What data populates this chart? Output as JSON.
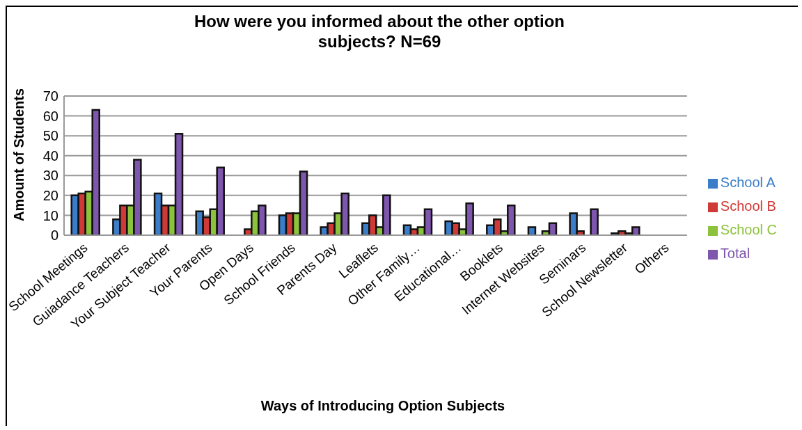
{
  "chart_data": {
    "type": "bar",
    "title": "How were you informed about the other option subjects? N=69",
    "xlabel": "Ways of Introducing Option Subjects",
    "ylabel": "Amount of Students",
    "categories": [
      "School Meetings",
      "Guiadance Teachers",
      "Your Subject Teacher",
      "Your Parents",
      "Open Days",
      "School Friends",
      "Parents Day",
      "Leaflets",
      "Other Family…",
      "Educational…",
      "Booklets",
      "Internet Websites",
      "Seminars",
      "School Newsletter",
      "Others"
    ],
    "series": [
      {
        "name": "School A",
        "color": "#3b7dc8",
        "values": [
          20,
          8,
          21,
          12,
          0,
          10,
          4,
          6,
          5,
          7,
          5,
          4,
          11,
          1,
          0
        ]
      },
      {
        "name": "School B",
        "color": "#d03a36",
        "values": [
          21,
          15,
          15,
          9,
          3,
          11,
          6,
          10,
          3,
          6,
          8,
          0,
          2,
          2,
          0
        ]
      },
      {
        "name": "School C",
        "color": "#8cc23c",
        "values": [
          22,
          15,
          15,
          13,
          12,
          11,
          11,
          4,
          4,
          3,
          2,
          2,
          0,
          1,
          0
        ]
      },
      {
        "name": "Total",
        "color": "#7e56ad",
        "values": [
          63,
          38,
          51,
          34,
          15,
          32,
          21,
          20,
          13,
          16,
          15,
          6,
          13,
          4,
          0
        ]
      }
    ],
    "ylim": [
      0,
      70
    ],
    "yticks": [
      0,
      10,
      20,
      30,
      40,
      50,
      60,
      70
    ],
    "grid": "y",
    "legend": "right"
  }
}
